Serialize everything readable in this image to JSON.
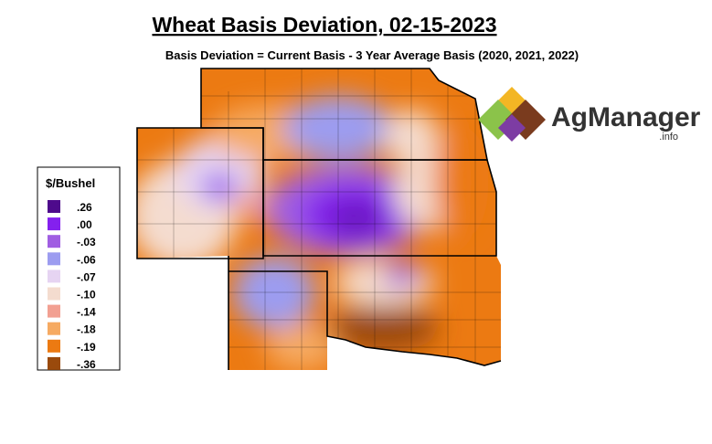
{
  "header": {
    "title": "Wheat Basis Deviation, 02-15-2023",
    "subtitle": "Basis Deviation = Current Basis - 3 Year Average Basis (2020, 2021, 2022)"
  },
  "legend": {
    "title": "$/Bushel",
    "items": [
      {
        "label": ".26",
        "color": "#4e0a8c"
      },
      {
        "label": ".00",
        "color": "#8420ee"
      },
      {
        "label": "-.03",
        "color": "#a05ee2"
      },
      {
        "label": "-.06",
        "color": "#9c9cf0"
      },
      {
        "label": "-.07",
        "color": "#e6d4f2"
      },
      {
        "label": "-.10",
        "color": "#f4dccf"
      },
      {
        "label": "-.14",
        "color": "#f2a092"
      },
      {
        "label": "-.18",
        "color": "#f6aa62"
      },
      {
        "label": "-.19",
        "color": "#ec7a12"
      },
      {
        "label": "-.36",
        "color": "#9a4a0c"
      }
    ]
  },
  "logo": {
    "name": "AgManager",
    "suffix": ".info"
  }
}
